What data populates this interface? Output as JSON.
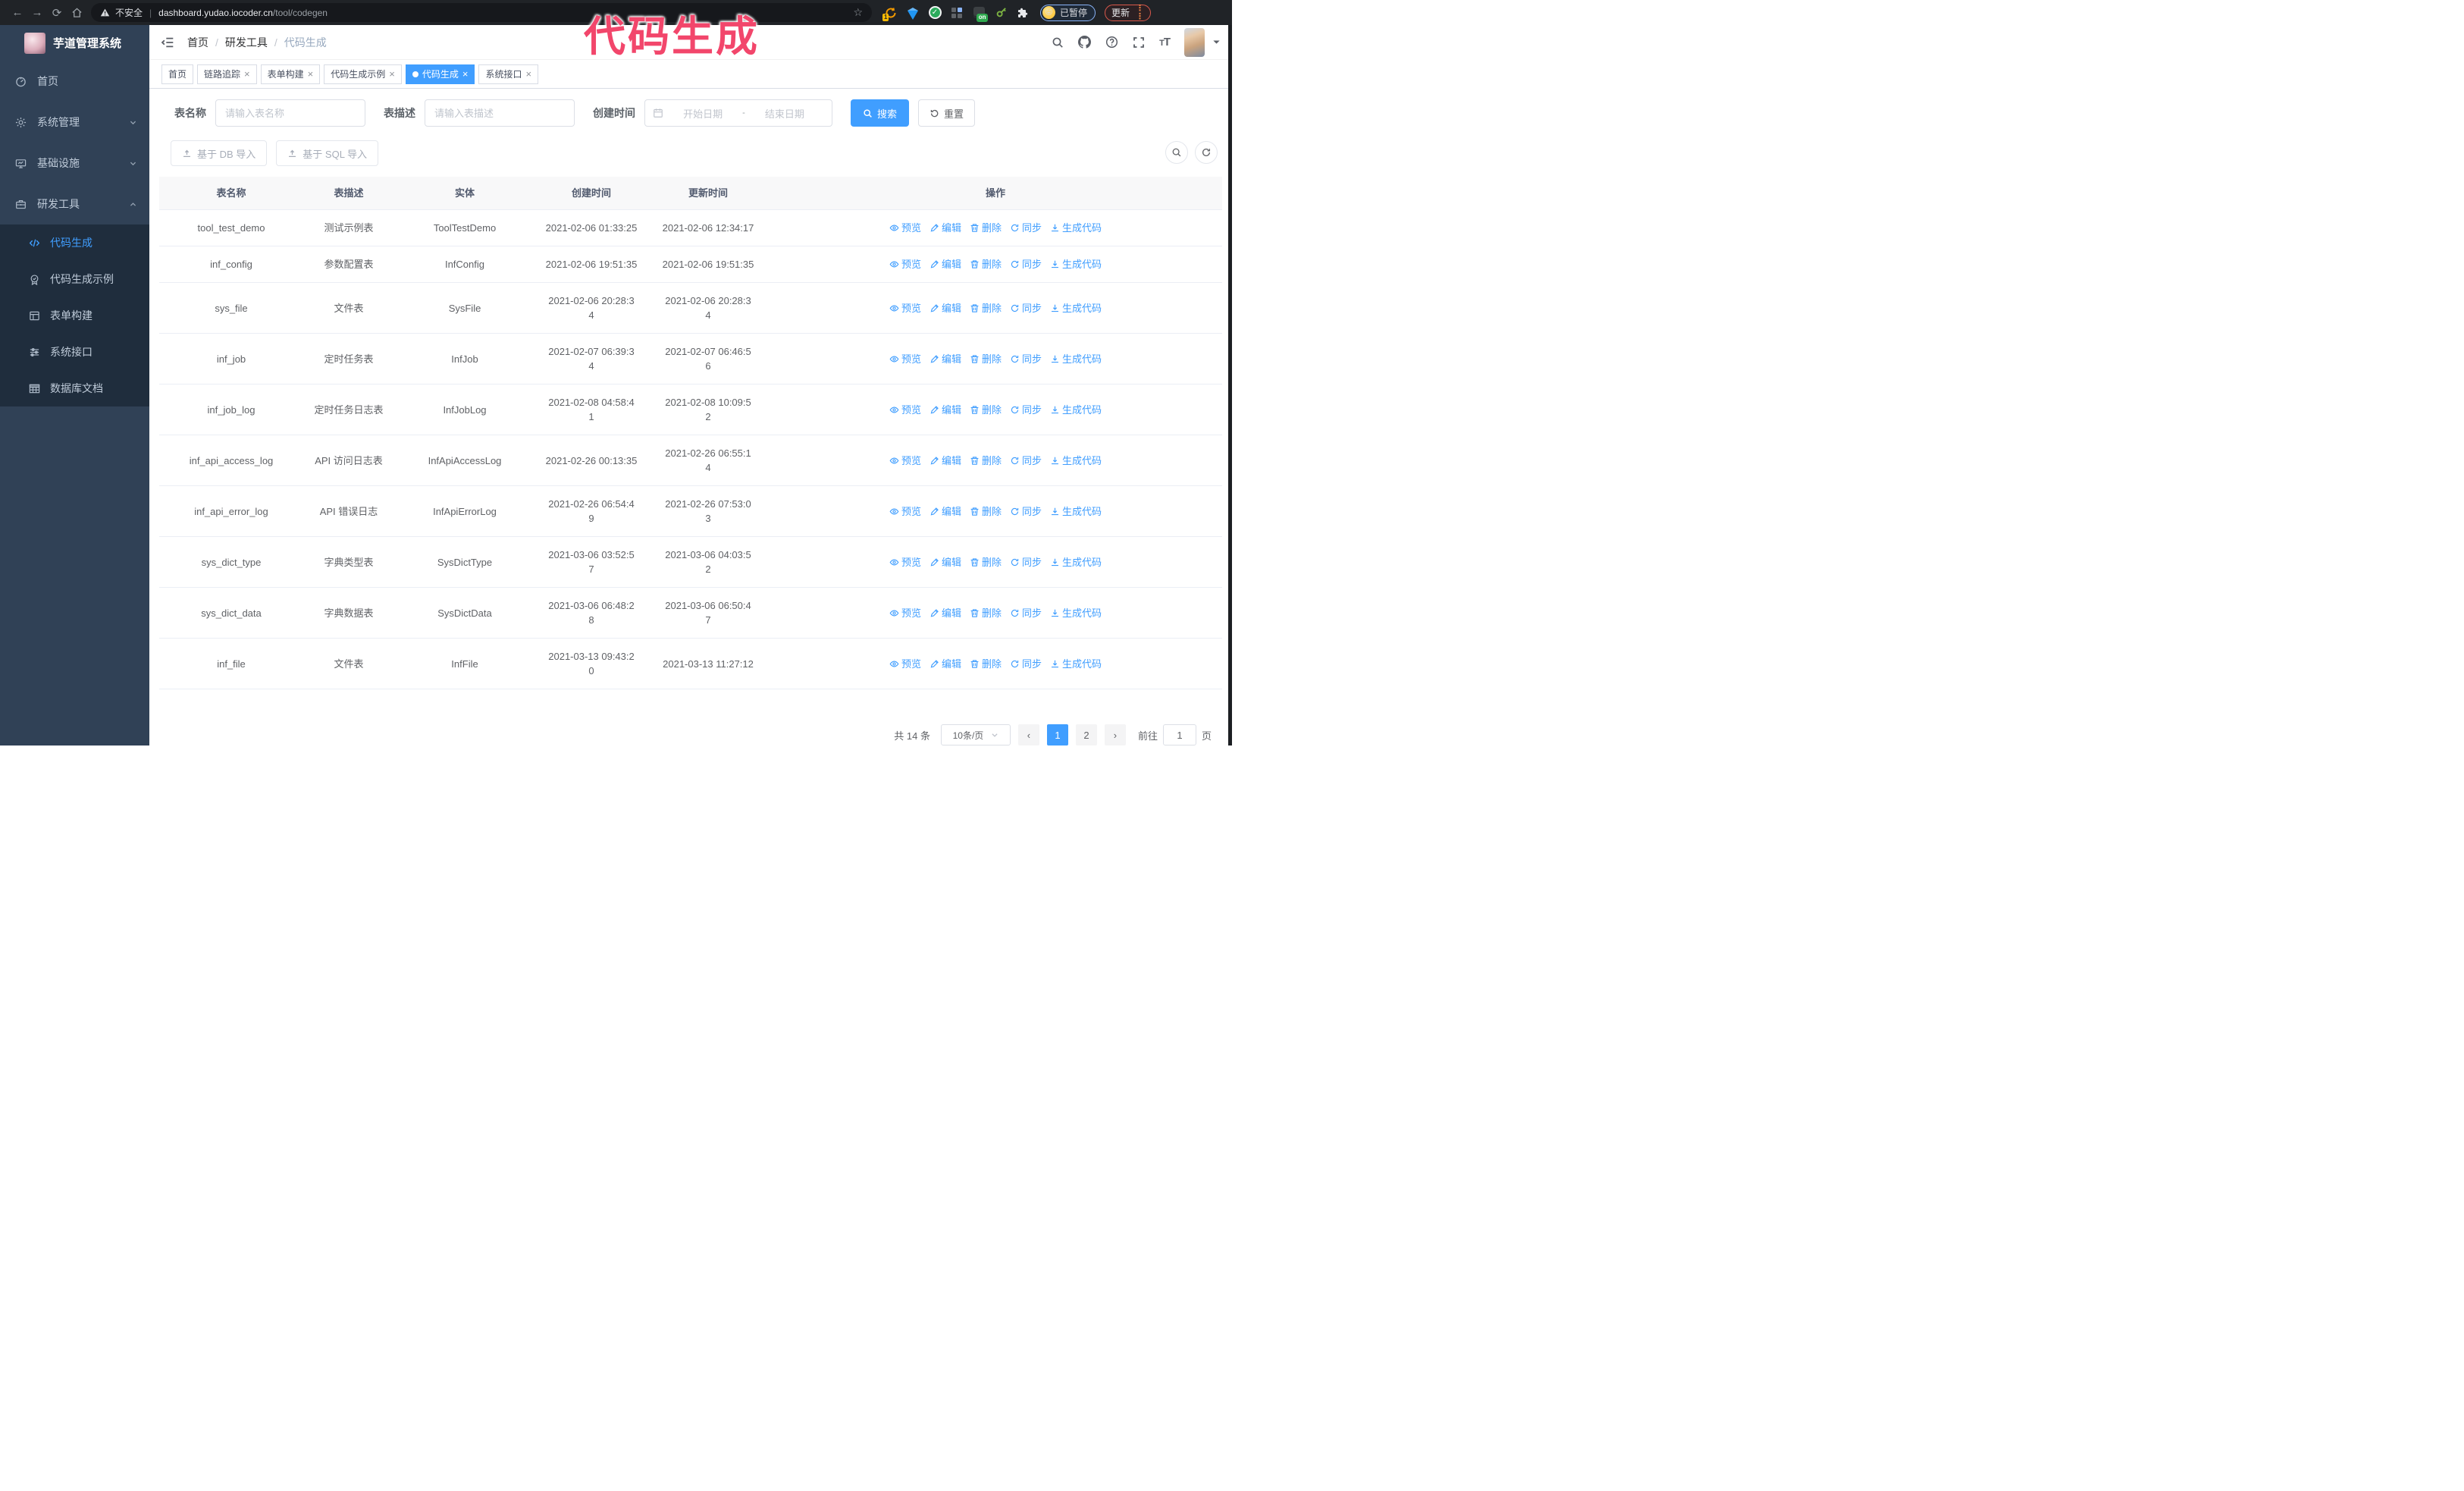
{
  "annotation": {
    "text": "代码生成",
    "color": "#f2466b"
  },
  "browser": {
    "nav_icons": [
      "back-icon",
      "forward-icon",
      "reload-icon",
      "home-icon"
    ],
    "security_label": "不安全",
    "url_host": "dashboard.yudao.iocoder.cn",
    "url_path": "/tool/codegen",
    "bookmark_star_icon": "star-icon",
    "extension_badge_one": "1",
    "extension_badge_on": "on",
    "profile_emoji": "😜",
    "profile_chip_label": "已暂停",
    "update_button_label": "更新"
  },
  "sidebar": {
    "title": "芋道管理系统",
    "menu": [
      {
        "icon": "dashboard-icon",
        "label": "首页",
        "chevron": ""
      },
      {
        "icon": "gear-icon",
        "label": "系统管理",
        "chevron": "down"
      },
      {
        "icon": "monitor-icon",
        "label": "基础设施",
        "chevron": "down"
      },
      {
        "icon": "briefcase-icon",
        "label": "研发工具",
        "chevron": "up"
      }
    ],
    "submenu": [
      {
        "icon": "code-icon",
        "label": "代码生成",
        "active": true
      },
      {
        "icon": "badge-check-icon",
        "label": "代码生成示例",
        "active": false
      },
      {
        "icon": "form-icon",
        "label": "表单构建",
        "active": false
      },
      {
        "icon": "sliders-icon",
        "label": "系统接口",
        "active": false
      },
      {
        "icon": "table-grid-icon",
        "label": "数据库文档",
        "active": false
      }
    ]
  },
  "header": {
    "breadcrumb": [
      "首页",
      "研发工具",
      "代码生成"
    ],
    "right_icons": [
      "search-icon",
      "github-icon",
      "question-icon",
      "fullscreen-icon",
      "font-size-icon"
    ]
  },
  "tabs": [
    {
      "label": "首页",
      "closable": false,
      "active": false
    },
    {
      "label": "链路追踪",
      "closable": true,
      "active": false
    },
    {
      "label": "表单构建",
      "closable": true,
      "active": false
    },
    {
      "label": "代码生成示例",
      "closable": true,
      "active": false
    },
    {
      "label": "代码生成",
      "closable": true,
      "active": true
    },
    {
      "label": "系统接口",
      "closable": true,
      "active": false
    }
  ],
  "filters": {
    "name_label": "表名称",
    "name_placeholder": "请输入表名称",
    "desc_label": "表描述",
    "desc_placeholder": "请输入表描述",
    "time_label": "创建时间",
    "start_placeholder": "开始日期",
    "range_separator": "-",
    "end_placeholder": "结束日期",
    "search_label": "搜索",
    "reset_label": "重置"
  },
  "toolbar": {
    "db_import_label": "基于 DB 导入",
    "sql_import_label": "基于 SQL 导入"
  },
  "table": {
    "headers": [
      "表名称",
      "表描述",
      "实体",
      "创建时间",
      "更新时间",
      "操作"
    ],
    "action_labels": [
      "预览",
      "编辑",
      "删除",
      "同步",
      "生成代码"
    ],
    "action_icons": [
      "eye-icon",
      "edit-icon",
      "delete-icon",
      "sync-icon",
      "download-icon"
    ],
    "rows": [
      {
        "name": "tool_test_demo",
        "desc": "测试示例表",
        "entity": "ToolTestDemo",
        "created": "2021-02-06 01:33:25",
        "updated": "2021-02-06 12:34:17"
      },
      {
        "name": "inf_config",
        "desc": "参数配置表",
        "entity": "InfConfig",
        "created": "2021-02-06 19:51:35",
        "updated": "2021-02-06 19:51:35"
      },
      {
        "name": "sys_file",
        "desc": "文件表",
        "entity": "SysFile",
        "created": "2021-02-06 20:28:3\n4",
        "updated": "2021-02-06 20:28:3\n4"
      },
      {
        "name": "inf_job",
        "desc": "定时任务表",
        "entity": "InfJob",
        "created": "2021-02-07 06:39:3\n4",
        "updated": "2021-02-07 06:46:5\n6"
      },
      {
        "name": "inf_job_log",
        "desc": "定时任务日志表",
        "entity": "InfJobLog",
        "created": "2021-02-08 04:58:4\n1",
        "updated": "2021-02-08 10:09:5\n2"
      },
      {
        "name": "inf_api_access_log",
        "desc": "API 访问日志表",
        "entity": "InfApiAccessLog",
        "created": "2021-02-26 00:13:35",
        "updated": "2021-02-26 06:55:1\n4"
      },
      {
        "name": "inf_api_error_log",
        "desc": "API 错误日志",
        "entity": "InfApiErrorLog",
        "created": "2021-02-26 06:54:4\n9",
        "updated": "2021-02-26 07:53:0\n3"
      },
      {
        "name": "sys_dict_type",
        "desc": "字典类型表",
        "entity": "SysDictType",
        "created": "2021-03-06 03:52:5\n7",
        "updated": "2021-03-06 04:03:5\n2"
      },
      {
        "name": "sys_dict_data",
        "desc": "字典数据表",
        "entity": "SysDictData",
        "created": "2021-03-06 06:48:2\n8",
        "updated": "2021-03-06 06:50:4\n7"
      },
      {
        "name": "inf_file",
        "desc": "文件表",
        "entity": "InfFile",
        "created": "2021-03-13 09:43:2\n0",
        "updated": "2021-03-13 11:27:12"
      }
    ]
  },
  "pagination": {
    "total_label": "共 14 条",
    "page_size_label": "10条/页",
    "pages": [
      "1",
      "2"
    ],
    "active_page": "1",
    "goto_label": "前往",
    "goto_value": "1",
    "goto_suffix": "页"
  }
}
